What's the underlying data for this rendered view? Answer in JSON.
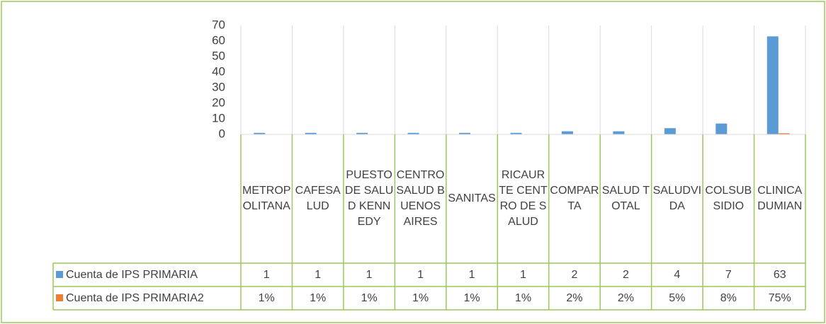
{
  "chart_data": {
    "type": "bar",
    "categories": [
      "METROPOLITANA",
      "CAFESALUD",
      "PUESTO DE SALUD KENNEDY",
      "CENTRO SALUD BUENOS AIRES",
      "SANITAS",
      "RICAURTE CENTRO DE SALUD",
      "COMPARTA",
      "SALUD TOTAL",
      "SALUDVIDA",
      "COLSUBSIDIO",
      "CLINICA DUMIAN"
    ],
    "series": [
      {
        "name": "Cuenta de IPS PRIMARIA",
        "color": "#5b9bd5",
        "values": [
          1,
          1,
          1,
          1,
          1,
          1,
          2,
          2,
          4,
          7,
          63
        ]
      },
      {
        "name": "Cuenta de IPS PRIMARIA2",
        "color": "#ed7d31",
        "values": [
          0.01,
          0.01,
          0.01,
          0.01,
          0.01,
          0.01,
          0.02,
          0.02,
          0.05,
          0.08,
          0.75
        ],
        "value_labels": [
          "1%",
          "1%",
          "1%",
          "1%",
          "1%",
          "1%",
          "2%",
          "2%",
          "5%",
          "8%",
          "75%"
        ]
      }
    ],
    "ylim": [
      0,
      70
    ],
    "yticks": [
      0,
      10,
      20,
      30,
      40,
      50,
      60,
      70
    ]
  }
}
